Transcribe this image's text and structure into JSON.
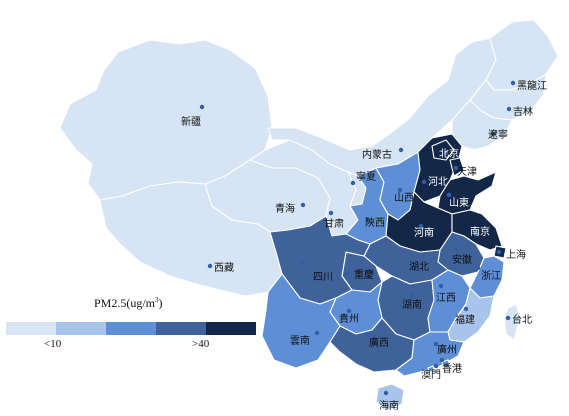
{
  "legend": {
    "title": "PM2.5(ug/m",
    "title_sup": "3",
    "title_close": ")",
    "low_label": "<10",
    "high_label": ">40",
    "colors": [
      "#d6e4f4",
      "#a9c4ea",
      "#5e8fd6",
      "#3f629b",
      "#132848"
    ]
  },
  "regions": [
    {
      "id": "xinjiang",
      "label": "新疆",
      "level": 1
    },
    {
      "id": "xizang",
      "label": "西藏",
      "level": 1
    },
    {
      "id": "qinghai",
      "label": "青海",
      "level": 1
    },
    {
      "id": "gansu",
      "label": "甘肃",
      "level": 1
    },
    {
      "id": "neimenggu",
      "label": "内蒙古",
      "level": 1
    },
    {
      "id": "ningxia",
      "label": "寧夏",
      "level": 1
    },
    {
      "id": "heilongjiang",
      "label": "黑龍江",
      "level": 1
    },
    {
      "id": "jilin",
      "label": "吉林",
      "level": 1
    },
    {
      "id": "liaoning",
      "label": "遼寧",
      "level": 1
    },
    {
      "id": "shaanxi",
      "label": "陝西",
      "level": 3
    },
    {
      "id": "shanxi",
      "label": "山西",
      "level": 3
    },
    {
      "id": "sichuan",
      "label": "四川",
      "level": 4
    },
    {
      "id": "chongqing",
      "label": "重慶",
      "level": 4
    },
    {
      "id": "yunnan",
      "label": "雲南",
      "level": 3
    },
    {
      "id": "guizhou",
      "label": "貴州",
      "level": 3
    },
    {
      "id": "guangxi",
      "label": "廣西",
      "level": 4
    },
    {
      "id": "hubei",
      "label": "湖北",
      "level": 4
    },
    {
      "id": "hunan",
      "label": "湖南",
      "level": 4
    },
    {
      "id": "henan",
      "label": "河南",
      "level": 5
    },
    {
      "id": "hebei",
      "label": "河北",
      "level": 5
    },
    {
      "id": "beijing",
      "label": "北京",
      "level": 5
    },
    {
      "id": "tianjin",
      "label": "天津",
      "level": 5
    },
    {
      "id": "shandong",
      "label": "山東",
      "level": 5
    },
    {
      "id": "jiangsu",
      "label": "南京",
      "level": 5
    },
    {
      "id": "shanghai",
      "label": "上海",
      "level": 5
    },
    {
      "id": "anhui",
      "label": "安徽",
      "level": 4
    },
    {
      "id": "zhejiang",
      "label": "浙江",
      "level": 3
    },
    {
      "id": "jiangxi",
      "label": "江西",
      "level": 3
    },
    {
      "id": "fujian",
      "label": "福建",
      "level": 2
    },
    {
      "id": "guangdong",
      "label": "廣州",
      "level": 3
    },
    {
      "id": "hainan",
      "label": "海南",
      "level": 2
    },
    {
      "id": "taiwan",
      "label": "台北",
      "level": 1
    },
    {
      "id": "hongkong",
      "label": "香港",
      "level": 3
    },
    {
      "id": "macau",
      "label": "澳門",
      "level": 3
    }
  ]
}
